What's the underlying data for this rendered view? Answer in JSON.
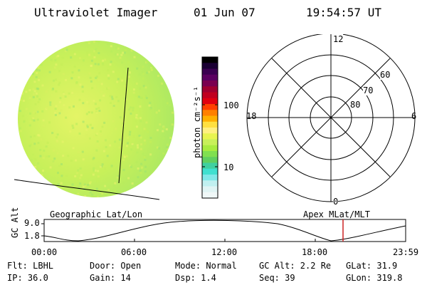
{
  "header": {
    "instrument": "Ultraviolet Imager",
    "date": "01 Jun 07",
    "time": "19:54:57 UT"
  },
  "colorbar": {
    "label": "photon cm⁻²s⁻¹",
    "tick_100": "100",
    "tick_10": "10"
  },
  "polar": {
    "mlt_12": "12",
    "mlt_18": "18",
    "mlt_6": "6",
    "mlt_0": "0",
    "lat_60": "60",
    "lat_70": "70",
    "lat_80": "80"
  },
  "labels": {
    "geo": "Geographic Lat/Lon",
    "apex": "Apex MLat/MLT"
  },
  "orbit": {
    "axis_label": "GC Alt",
    "y_high": "9.0",
    "y_low": "1.8",
    "x_ticks": [
      "00:00",
      "06:00",
      "12:00",
      "18:00",
      "23:59"
    ]
  },
  "params": {
    "flt": "Flt: LBHL",
    "ip": "IP: 36.0",
    "door": "Door: Open",
    "gain": "Gain: 14",
    "mode": "Mode: Normal",
    "dsp": "Dsp:    1.4",
    "gcalt": "GC Alt: 2.2 Re",
    "seq": "Seq: 39",
    "glat": "GLat:  31.9",
    "glon": "GLon: 319.8"
  },
  "colors": {
    "disk_main": "#c8f05a",
    "disk_light": "#e4f466",
    "disk_edge": "#a8e864",
    "marker": "#cc2222"
  }
}
